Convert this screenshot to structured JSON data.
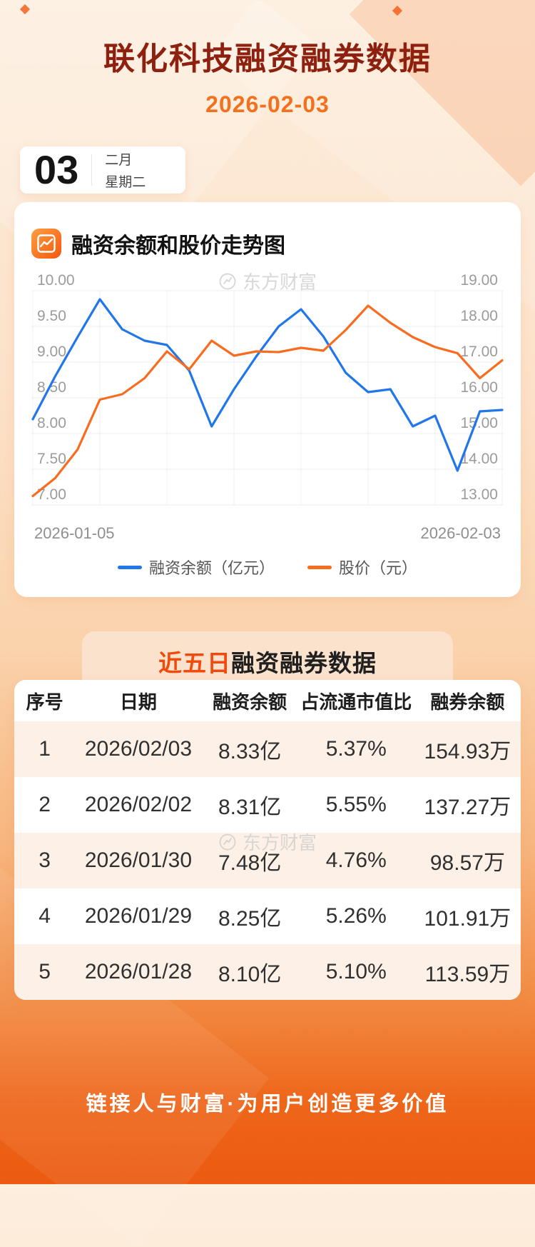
{
  "header": {
    "title": "联化科技融资融券数据",
    "date": "2026-02-03"
  },
  "date_card": {
    "day": "03",
    "month": "二月",
    "weekday": "星期二"
  },
  "chart_section": {
    "title": "融资余额和股价走势图",
    "watermark": "东方财富"
  },
  "chart_data": {
    "type": "line",
    "title": "融资余额和股价走势图",
    "x_start_label": "2026-01-05",
    "x_end_label": "2026-02-03",
    "grid": true,
    "legend_position": "bottom",
    "left_axis": {
      "min": 7.0,
      "max": 10.0,
      "ticks": [
        "10.00",
        "9.50",
        "9.00",
        "8.50",
        "8.00",
        "7.50",
        "7.00"
      ]
    },
    "right_axis": {
      "min": 13.0,
      "max": 19.0,
      "ticks": [
        "19.00",
        "18.00",
        "17.00",
        "16.00",
        "15.00",
        "14.00",
        "13.00"
      ]
    },
    "series": [
      {
        "name": "融资余额（亿元）",
        "axis": "left",
        "color": "#2176ec",
        "values": [
          8.2,
          8.8,
          9.35,
          9.88,
          9.46,
          9.3,
          9.24,
          8.88,
          8.1,
          8.62,
          9.08,
          9.5,
          9.74,
          9.36,
          8.85,
          8.58,
          8.62,
          8.1,
          8.25,
          7.48,
          8.31,
          8.33
        ]
      },
      {
        "name": "股价（元）",
        "axis": "right",
        "color": "#f96c1f",
        "values": [
          13.25,
          13.75,
          14.55,
          15.95,
          16.1,
          16.55,
          17.3,
          16.8,
          17.6,
          17.18,
          17.3,
          17.28,
          17.4,
          17.32,
          17.9,
          18.58,
          18.1,
          17.7,
          17.42,
          17.25,
          16.55,
          17.05
        ]
      }
    ]
  },
  "table_section": {
    "title_highlight": "近五日",
    "title_rest": "融资融券数据",
    "watermark": "东方财富",
    "columns": [
      "序号",
      "日期",
      "融资余额",
      "占流通市值比",
      "融券余额"
    ],
    "rows": [
      {
        "no": "1",
        "date": "2026/02/03",
        "balance": "8.33亿",
        "ratio": "5.37%",
        "short_balance": "154.93万"
      },
      {
        "no": "2",
        "date": "2026/02/02",
        "balance": "8.31亿",
        "ratio": "5.55%",
        "short_balance": "137.27万"
      },
      {
        "no": "3",
        "date": "2026/01/30",
        "balance": "7.48亿",
        "ratio": "4.76%",
        "short_balance": "98.57万"
      },
      {
        "no": "4",
        "date": "2026/01/29",
        "balance": "8.25亿",
        "ratio": "5.26%",
        "short_balance": "101.91万"
      },
      {
        "no": "5",
        "date": "2026/01/28",
        "balance": "8.10亿",
        "ratio": "5.10%",
        "short_balance": "113.59万"
      }
    ]
  },
  "footer": {
    "slogan": "链接人与财富·为用户创造更多价值"
  },
  "colors": {
    "title": "#8d200f",
    "accent_date": "#f3701d",
    "highlight": "#f04b0c",
    "line_financing": "#2176ec",
    "line_price": "#f96c1f"
  }
}
